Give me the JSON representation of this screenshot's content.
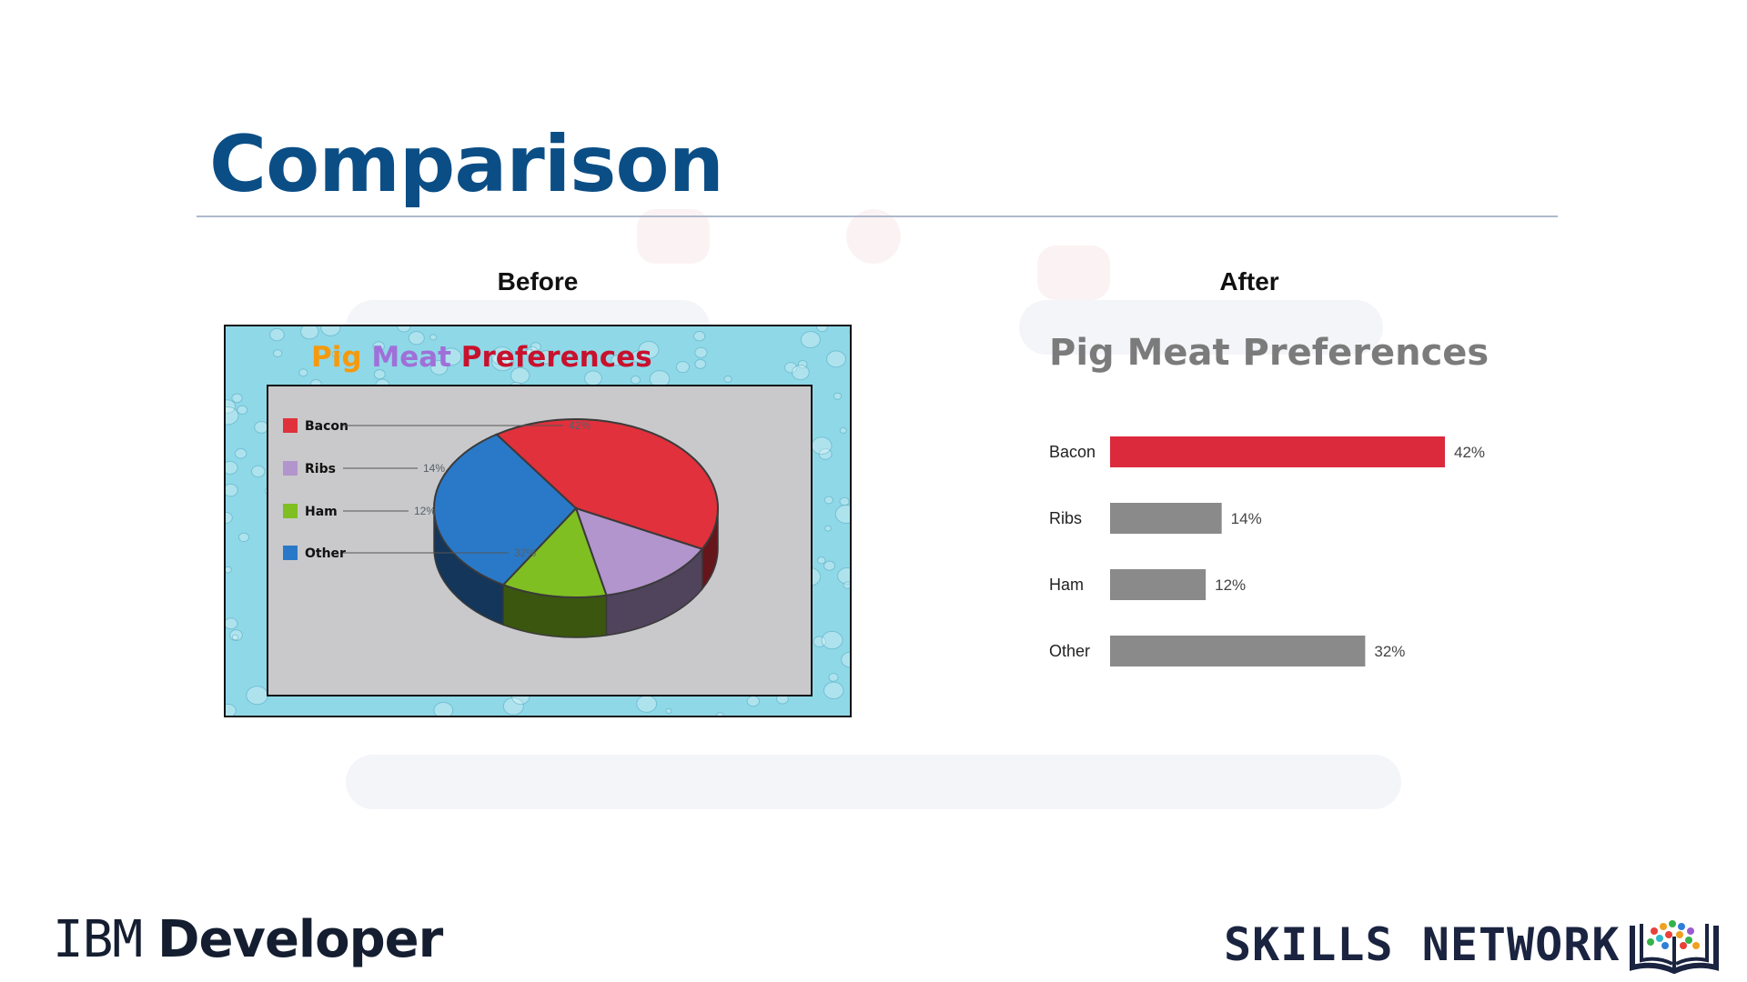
{
  "slide": {
    "title": "Comparison",
    "before_heading": "Before",
    "after_heading": "After"
  },
  "footer": {
    "brand_left_part1": "IBM",
    "brand_left_part2": "Developer",
    "brand_right": "SKILLS NETWORK",
    "logo_icon": "open-book-icon"
  },
  "before": {
    "title_words": [
      "Pig",
      "Meat",
      "Preferences"
    ],
    "title_colors": [
      "#f59a0e",
      "#a070d8",
      "#c8112d"
    ],
    "background_color": "#8fd8e8",
    "plot_background_color": "#c9c9cb"
  },
  "chart_data": [
    {
      "type": "pie",
      "style": "3d",
      "title": "Pig Meat Preferences",
      "legend_position": "left",
      "categories": [
        "Bacon",
        "Ribs",
        "Ham",
        "Other"
      ],
      "values": [
        42,
        14,
        12,
        32
      ],
      "labels": [
        "42%",
        "14%",
        "12%",
        "32%"
      ],
      "colors": [
        "#e0313c",
        "#b295cc",
        "#80bf22",
        "#2a79c8"
      ]
    },
    {
      "type": "bar",
      "orientation": "horizontal",
      "title": "Pig Meat Preferences",
      "categories": [
        "Bacon",
        "Ribs",
        "Ham",
        "Other"
      ],
      "values": [
        42,
        14,
        12,
        32
      ],
      "labels": [
        "42%",
        "14%",
        "12%",
        "32%"
      ],
      "xlim": [
        0,
        42
      ],
      "highlight_color": "#db2a3c",
      "bar_color": "#8a8a8a",
      "grid": false
    }
  ]
}
